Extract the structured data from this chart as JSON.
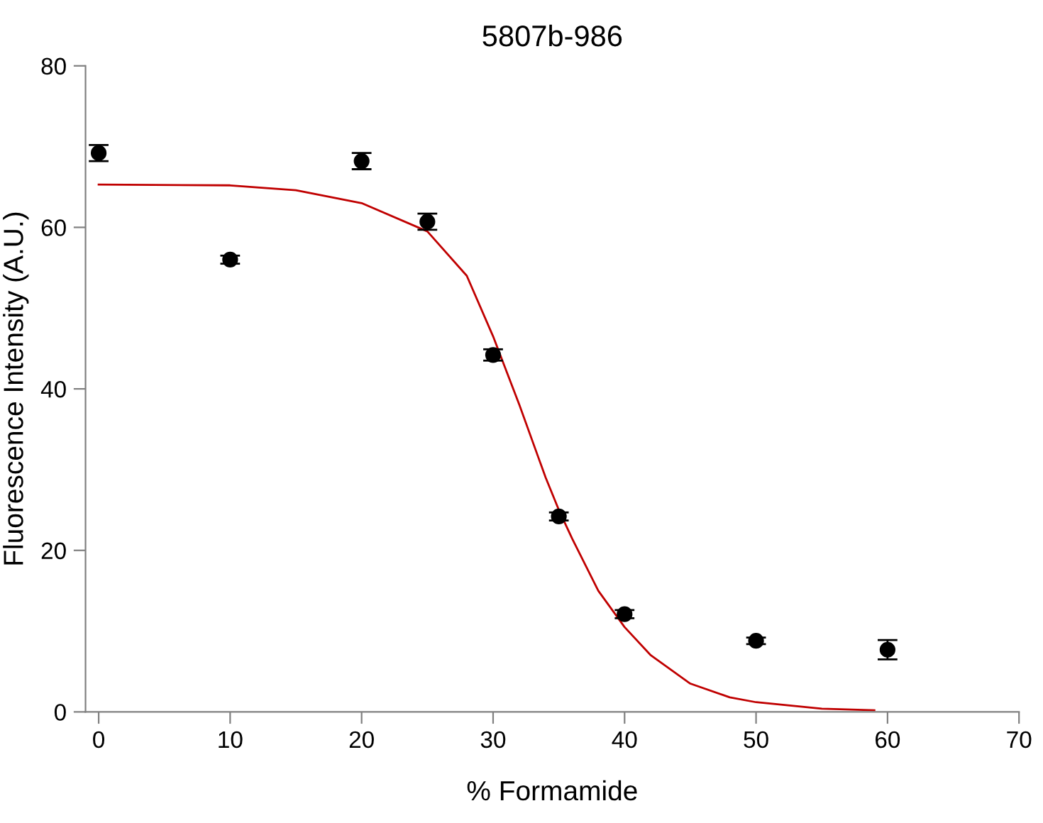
{
  "chart_data": {
    "type": "scatter",
    "title": "5807b-986",
    "xlabel": "% Formamide",
    "ylabel": "Fluorescence Intensity (A.U.)",
    "xlim": [
      -1,
      70
    ],
    "ylim": [
      0,
      80
    ],
    "xticks": [
      0,
      10,
      20,
      30,
      40,
      50,
      60,
      70
    ],
    "yticks": [
      0,
      20,
      40,
      60,
      80
    ],
    "grid": false,
    "legend": false,
    "marker": "circle",
    "series": [
      {
        "color": "#000000",
        "x": [
          0,
          10,
          20,
          25,
          30,
          35,
          40,
          50,
          60
        ],
        "values": [
          69.2,
          56.0,
          68.2,
          60.7,
          44.2,
          24.2,
          12.1,
          8.8,
          7.7
        ],
        "errors": [
          1.0,
          0.5,
          1.0,
          1.0,
          0.7,
          0.5,
          0.5,
          0.4,
          1.2
        ]
      },
      {
        "type": "line",
        "color": "#c00000",
        "marker": "none",
        "x": [
          0,
          10,
          15,
          20,
          25,
          28,
          30,
          32,
          34,
          35,
          36,
          38,
          40,
          42,
          45,
          48,
          50,
          55,
          59
        ],
        "values": [
          65.3,
          65.2,
          64.6,
          63.0,
          59.5,
          54,
          46.5,
          38,
          29,
          25,
          21.5,
          15,
          10.5,
          7,
          3.5,
          1.8,
          1.2,
          0.4,
          0.2
        ]
      }
    ]
  }
}
